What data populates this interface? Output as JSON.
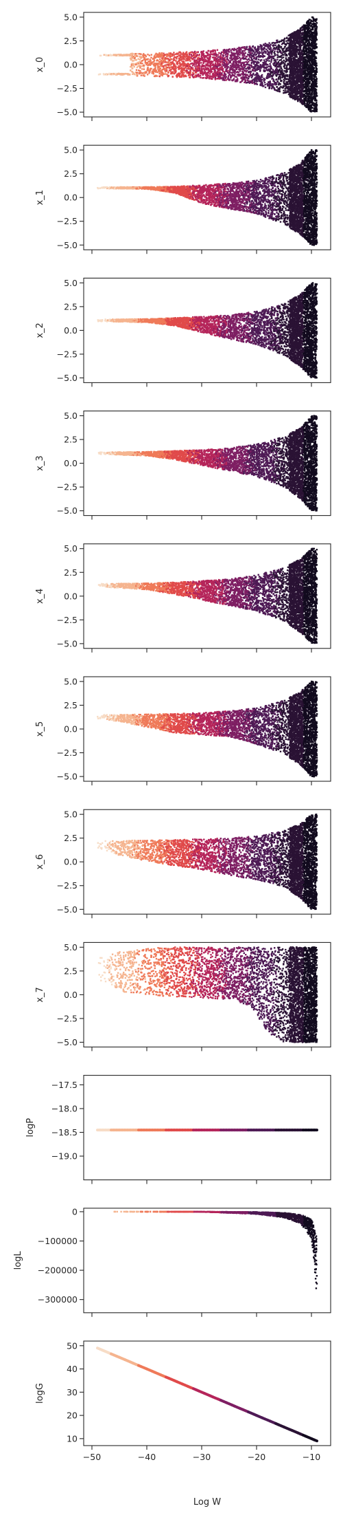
{
  "figure": {
    "xlabel": "Log W"
  },
  "colormap": [
    "#f7dcc6",
    "#f5b48f",
    "#ef7a59",
    "#e04a4a",
    "#b5255a",
    "#7e1e63",
    "#4e1a55",
    "#2a1234",
    "#120b1e"
  ],
  "chart_data": [
    {
      "type": "scatter",
      "ylabel": "x_0",
      "xlim": [
        -51.5,
        -6.5
      ],
      "ylim": [
        -5.5,
        5.5
      ],
      "x_ticks": [
        -50,
        -40,
        -30,
        -20,
        -10
      ],
      "y_ticks": [
        5.0,
        2.5,
        0.0,
        -2.5,
        -5.0
      ],
      "y_tick_labels": [
        "5.0",
        "2.5",
        "0.0",
        "−2.5",
        "−5.0"
      ],
      "show_x_tick_labels": false,
      "envelope": {
        "x": [
          -49,
          -40,
          -30,
          -25,
          -20,
          -15,
          -12,
          -10,
          -9
        ],
        "y_upper": [
          1.1,
          1.2,
          1.4,
          1.7,
          2.0,
          2.8,
          3.8,
          5.0,
          5.0
        ],
        "y_lower": [
          -1.1,
          -1.2,
          -1.4,
          -1.7,
          -2.1,
          -3.0,
          -4.0,
          -5.0,
          -5.0
        ]
      },
      "filled_from_x": -43,
      "bands": [
        {
          "center": 1.0,
          "half": 0.06
        },
        {
          "center": -1.0,
          "half": 0.06
        }
      ]
    },
    {
      "type": "scatter",
      "ylabel": "x_1",
      "xlim": [
        -51.5,
        -6.5
      ],
      "ylim": [
        -5.5,
        5.5
      ],
      "x_ticks": [
        -50,
        -40,
        -30,
        -20,
        -10
      ],
      "y_ticks": [
        5.0,
        2.5,
        0.0,
        -2.5,
        -5.0
      ],
      "y_tick_labels": [
        "5.0",
        "2.5",
        "0.0",
        "−2.5",
        "−5.0"
      ],
      "show_x_tick_labels": false,
      "envelope": {
        "x": [
          -49,
          -40,
          -35,
          -30,
          -25,
          -20,
          -15,
          -12,
          -10,
          -9
        ],
        "y_upper": [
          1.1,
          1.1,
          1.15,
          1.3,
          1.5,
          1.8,
          2.6,
          3.6,
          5.0,
          5.0
        ],
        "y_lower": [
          0.95,
          0.9,
          0.5,
          -0.6,
          -1.2,
          -1.7,
          -2.8,
          -3.9,
          -5.0,
          -5.0
        ]
      },
      "bands": []
    },
    {
      "type": "scatter",
      "ylabel": "x_2",
      "xlim": [
        -51.5,
        -6.5
      ],
      "ylim": [
        -5.5,
        5.5
      ],
      "x_ticks": [
        -50,
        -40,
        -30,
        -20,
        -10
      ],
      "y_ticks": [
        5.0,
        2.5,
        0.0,
        -2.5,
        -5.0
      ],
      "y_tick_labels": [
        "5.0",
        "2.5",
        "0.0",
        "−2.5",
        "−5.0"
      ],
      "show_x_tick_labels": false,
      "envelope": {
        "x": [
          -49,
          -40,
          -35,
          -30,
          -25,
          -20,
          -15,
          -12,
          -10,
          -9
        ],
        "y_upper": [
          1.15,
          1.2,
          1.3,
          1.45,
          1.6,
          2.0,
          2.8,
          3.8,
          5.0,
          5.0
        ],
        "y_lower": [
          0.95,
          0.85,
          0.5,
          -0.2,
          -0.9,
          -1.5,
          -2.6,
          -3.8,
          -5.0,
          -5.0
        ]
      },
      "bands": []
    },
    {
      "type": "scatter",
      "ylabel": "x_3",
      "xlim": [
        -51.5,
        -6.5
      ],
      "ylim": [
        -5.5,
        5.5
      ],
      "x_ticks": [
        -50,
        -40,
        -30,
        -20,
        -10
      ],
      "y_ticks": [
        5.0,
        2.5,
        0.0,
        -2.5,
        -5.0
      ],
      "y_tick_labels": [
        "5.0",
        "2.5",
        "0.0",
        "−2.5",
        "−5.0"
      ],
      "show_x_tick_labels": false,
      "envelope": {
        "x": [
          -49,
          -40,
          -35,
          -30,
          -25,
          -20,
          -15,
          -12,
          -10,
          -9
        ],
        "y_upper": [
          1.15,
          1.2,
          1.3,
          1.4,
          1.6,
          2.0,
          2.8,
          3.7,
          5.0,
          5.0
        ],
        "y_lower": [
          0.95,
          0.8,
          0.4,
          -0.2,
          -0.8,
          -1.4,
          -2.5,
          -3.7,
          -5.0,
          -5.0
        ]
      },
      "bands": []
    },
    {
      "type": "scatter",
      "ylabel": "x_4",
      "xlim": [
        -51.5,
        -6.5
      ],
      "ylim": [
        -5.5,
        5.5
      ],
      "x_ticks": [
        -50,
        -40,
        -30,
        -20,
        -10
      ],
      "y_ticks": [
        5.0,
        2.5,
        0.0,
        -2.5,
        -5.0
      ],
      "y_tick_labels": [
        "5.0",
        "2.5",
        "0.0",
        "−2.5",
        "−5.0"
      ],
      "show_x_tick_labels": false,
      "envelope": {
        "x": [
          -49,
          -40,
          -35,
          -30,
          -25,
          -20,
          -15,
          -12,
          -10,
          -9
        ],
        "y_upper": [
          1.3,
          1.35,
          1.45,
          1.6,
          1.8,
          2.2,
          3.0,
          3.9,
          5.0,
          5.0
        ],
        "y_lower": [
          1.0,
          0.7,
          0.2,
          -0.4,
          -1.0,
          -1.6,
          -2.6,
          -3.8,
          -5.0,
          -5.0
        ]
      },
      "bands": []
    },
    {
      "type": "scatter",
      "ylabel": "x_5",
      "xlim": [
        -51.5,
        -6.5
      ],
      "ylim": [
        -5.5,
        5.5
      ],
      "x_ticks": [
        -50,
        -40,
        -30,
        -20,
        -10
      ],
      "y_ticks": [
        5.0,
        2.5,
        0.0,
        -2.5,
        -5.0
      ],
      "y_tick_labels": [
        "5.0",
        "2.5",
        "0.0",
        "−2.5",
        "−5.0"
      ],
      "show_x_tick_labels": false,
      "envelope": {
        "x": [
          -49,
          -45,
          -40,
          -35,
          -30,
          -25,
          -20,
          -15,
          -12,
          -10,
          -9
        ],
        "y_upper": [
          1.5,
          1.5,
          1.55,
          1.6,
          1.7,
          1.9,
          2.2,
          3.0,
          3.9,
          5.0,
          5.0
        ],
        "y_lower": [
          1.1,
          0.8,
          0.2,
          -0.4,
          -0.6,
          -0.8,
          -1.6,
          -2.6,
          -3.8,
          -5.0,
          -5.0
        ]
      },
      "bands": []
    },
    {
      "type": "scatter",
      "ylabel": "x_6",
      "xlim": [
        -51.5,
        -6.5
      ],
      "ylim": [
        -5.5,
        5.5
      ],
      "x_ticks": [
        -50,
        -40,
        -30,
        -20,
        -10
      ],
      "y_ticks": [
        5.0,
        2.5,
        0.0,
        -2.5,
        -5.0
      ],
      "y_tick_labels": [
        "5.0",
        "2.5",
        "0.0",
        "−2.5",
        "−5.0"
      ],
      "show_x_tick_labels": false,
      "envelope": {
        "x": [
          -49,
          -45,
          -40,
          -35,
          -30,
          -25,
          -20,
          -15,
          -12,
          -10,
          -9
        ],
        "y_upper": [
          2.2,
          2.2,
          2.3,
          2.3,
          2.4,
          2.5,
          2.7,
          3.3,
          4.0,
          5.0,
          5.0
        ],
        "y_lower": [
          1.5,
          0.7,
          0.1,
          -0.4,
          -0.8,
          -1.4,
          -1.9,
          -2.6,
          -3.8,
          -5.0,
          -5.0
        ]
      },
      "bands": []
    },
    {
      "type": "scatter",
      "ylabel": "x_7",
      "xlim": [
        -51.5,
        -6.5
      ],
      "ylim": [
        -5.5,
        5.5
      ],
      "x_ticks": [
        -50,
        -40,
        -30,
        -20,
        -10
      ],
      "y_ticks": [
        5.0,
        2.5,
        0.0,
        -2.5,
        -5.0
      ],
      "y_tick_labels": [
        "5.0",
        "2.5",
        "0.0",
        "−2.5",
        "−5.0"
      ],
      "show_x_tick_labels": false,
      "envelope": {
        "x": [
          -49,
          -45,
          -40,
          -35,
          -30,
          -25,
          -22,
          -20,
          -18,
          -15,
          -12,
          -9
        ],
        "y_upper": [
          3.8,
          4.5,
          4.9,
          5.0,
          5.0,
          5.0,
          5.0,
          5.0,
          5.0,
          5.0,
          5.0,
          5.0
        ],
        "y_lower": [
          1.5,
          0.3,
          0.0,
          -0.2,
          -0.3,
          -0.5,
          -1.0,
          -2.0,
          -4.0,
          -5.0,
          -5.0,
          -5.0
        ]
      },
      "bands": []
    },
    {
      "type": "scatter",
      "ylabel": "logP",
      "xlim": [
        -51.5,
        -6.5
      ],
      "ylim": [
        -19.5,
        -17.3
      ],
      "x_ticks": [
        -50,
        -40,
        -30,
        -20,
        -10
      ],
      "y_ticks": [
        -17.5,
        -18.0,
        -18.5,
        -19.0
      ],
      "y_tick_labels": [
        "−17.5",
        "−18.0",
        "−18.5",
        "−19.0"
      ],
      "show_x_tick_labels": false,
      "line_points": {
        "x": [
          -49,
          -9
        ],
        "y": [
          -18.45,
          -18.45
        ]
      },
      "line_width": 4
    },
    {
      "type": "scatter",
      "ylabel": "logL",
      "xlim": [
        -51.5,
        -6.5
      ],
      "ylim": [
        -345000,
        12000
      ],
      "x_ticks": [
        -50,
        -40,
        -30,
        -20,
        -10
      ],
      "y_ticks": [
        0,
        -100000,
        -200000,
        -300000
      ],
      "y_tick_labels": [
        "0",
        "−100000",
        "−200000",
        "−300000"
      ],
      "show_x_tick_labels": false,
      "logl_shape": {
        "x": [
          -49,
          -30,
          -20,
          -15,
          -12,
          -10,
          -9.5,
          -9
        ],
        "y_upper": [
          0,
          0,
          -1000,
          -4000,
          -10000,
          -25000,
          -50000,
          -80000
        ],
        "y_lower": [
          0,
          -500,
          -8000,
          -20000,
          -40000,
          -90000,
          -180000,
          -300000
        ]
      }
    },
    {
      "type": "scatter",
      "ylabel": "logG",
      "xlim": [
        -51.5,
        -6.5
      ],
      "ylim": [
        7,
        52
      ],
      "x_ticks": [
        -50,
        -40,
        -30,
        -20,
        -10
      ],
      "x_tick_labels": [
        "−50",
        "−40",
        "−30",
        "−20",
        "−10"
      ],
      "y_ticks": [
        50,
        40,
        30,
        20,
        10
      ],
      "y_tick_labels": [
        "50",
        "40",
        "30",
        "20",
        "10"
      ],
      "show_x_tick_labels": true,
      "line_points": {
        "x": [
          -49,
          -9
        ],
        "y": [
          49,
          9
        ]
      },
      "line_width": 4
    }
  ]
}
